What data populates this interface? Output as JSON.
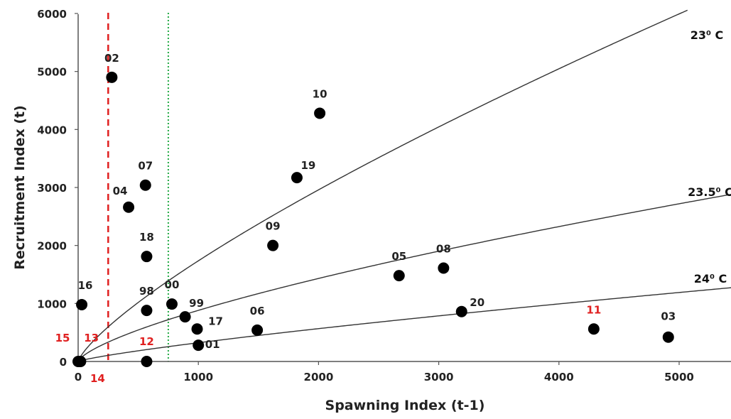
{
  "chart_data": {
    "type": "scatter",
    "xlabel": "Spawning Index (t-1)",
    "ylabel": "Recruitment Index (t)",
    "xlim": [
      0,
      5500
    ],
    "ylim": [
      0,
      6000
    ],
    "x_ticks": [
      0,
      1000,
      2000,
      3000,
      4000,
      5000
    ],
    "y_ticks": [
      0,
      1000,
      2000,
      3000,
      4000,
      5000,
      6000
    ],
    "x_tick_labels": [
      "0",
      "1000",
      "2000",
      "3000",
      "4000",
      "5000"
    ],
    "y_tick_labels": [
      "0",
      "1000",
      "2000",
      "3000",
      "4000",
      "5000",
      "6000"
    ],
    "grid": false,
    "points": [
      {
        "label": "02",
        "x": 280,
        "y": 4900,
        "label_color": "#222222"
      },
      {
        "label": "10",
        "x": 2010,
        "y": 4280,
        "label_color": "#222222"
      },
      {
        "label": "07",
        "x": 560,
        "y": 3040,
        "label_color": "#222222"
      },
      {
        "label": "19",
        "x": 1820,
        "y": 3170,
        "label_color": "#222222"
      },
      {
        "label": "04",
        "x": 420,
        "y": 2660,
        "label_color": "#222222"
      },
      {
        "label": "18",
        "x": 570,
        "y": 1810,
        "label_color": "#222222"
      },
      {
        "label": "09",
        "x": 1620,
        "y": 2000,
        "label_color": "#222222"
      },
      {
        "label": "05",
        "x": 2670,
        "y": 1480,
        "label_color": "#222222"
      },
      {
        "label": "08",
        "x": 3040,
        "y": 1610,
        "label_color": "#222222"
      },
      {
        "label": "16",
        "x": 30,
        "y": 980,
        "label_color": "#222222"
      },
      {
        "label": "98",
        "x": 570,
        "y": 880,
        "label_color": "#222222"
      },
      {
        "label": "00",
        "x": 780,
        "y": 990,
        "label_color": "#222222"
      },
      {
        "label": "99",
        "x": 890,
        "y": 770,
        "label_color": "#222222"
      },
      {
        "label": "17",
        "x": 990,
        "y": 560,
        "label_color": "#222222"
      },
      {
        "label": "06",
        "x": 1490,
        "y": 540,
        "label_color": "#222222"
      },
      {
        "label": "20",
        "x": 3190,
        "y": 860,
        "label_color": "#222222"
      },
      {
        "label": "11",
        "x": 4290,
        "y": 560,
        "label_color": "#e02020"
      },
      {
        "label": "03",
        "x": 4910,
        "y": 420,
        "label_color": "#222222"
      },
      {
        "label": "01",
        "x": 1000,
        "y": 280,
        "label_color": "#222222"
      },
      {
        "label": "12",
        "x": 570,
        "y": 0,
        "label_color": "#e02020"
      },
      {
        "label": "15",
        "x": 0,
        "y": 0,
        "label_color": "#e02020"
      },
      {
        "label": "13",
        "x": 10,
        "y": 0,
        "label_color": "#e02020"
      },
      {
        "label": "14",
        "x": 20,
        "y": 0,
        "label_color": "#e02020"
      }
    ],
    "curves": [
      {
        "name": "23⁰ C",
        "a": 8.5,
        "b": 0.77
      },
      {
        "name": "23.5⁰ C",
        "a": 7.0,
        "b": 0.7
      },
      {
        "name": "24⁰ C",
        "a": 1.2,
        "b": 0.81
      }
    ],
    "reference_lines": [
      {
        "x": 250,
        "color": "#e02020",
        "style": "dashed"
      },
      {
        "x": 750,
        "color": "#22aa44",
        "style": "dotted"
      }
    ]
  }
}
